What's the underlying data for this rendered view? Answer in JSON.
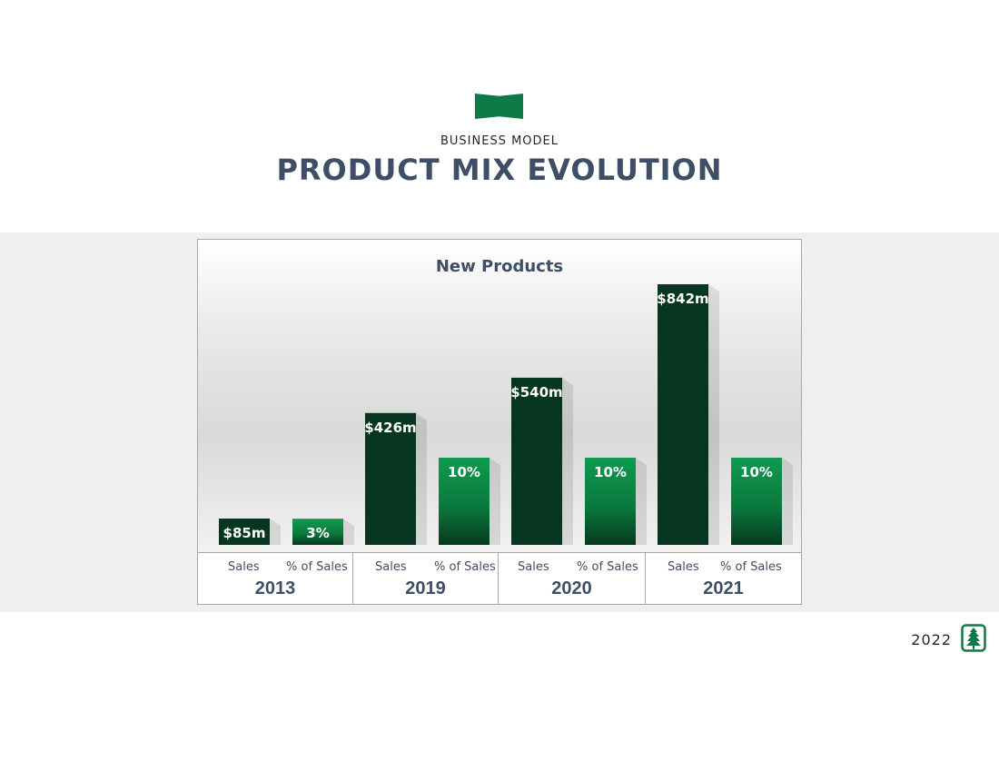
{
  "header": {
    "subtitle": "BUSINESS MODEL",
    "title": "PRODUCT MIX EVOLUTION"
  },
  "chart_data": {
    "type": "bar",
    "title": "New Products",
    "categories": [
      "2013",
      "2019",
      "2020",
      "2021"
    ],
    "series": [
      {
        "name": "Sales",
        "values": [
          85,
          426,
          540,
          842
        ],
        "labels": [
          "$85m",
          "$426m",
          "$540m",
          "$842m"
        ],
        "color": "#063620"
      },
      {
        "name": "% of Sales",
        "values": [
          3,
          10,
          10,
          10
        ],
        "labels": [
          "3%",
          "10%",
          "10%",
          "10%"
        ],
        "color": "#0d8a46"
      }
    ],
    "xlabel": "",
    "ylabel": "",
    "grid": false
  },
  "footer": {
    "year": "2022"
  },
  "logo": {
    "icon": "tree-logo-icon",
    "color": "#0f7a45"
  }
}
